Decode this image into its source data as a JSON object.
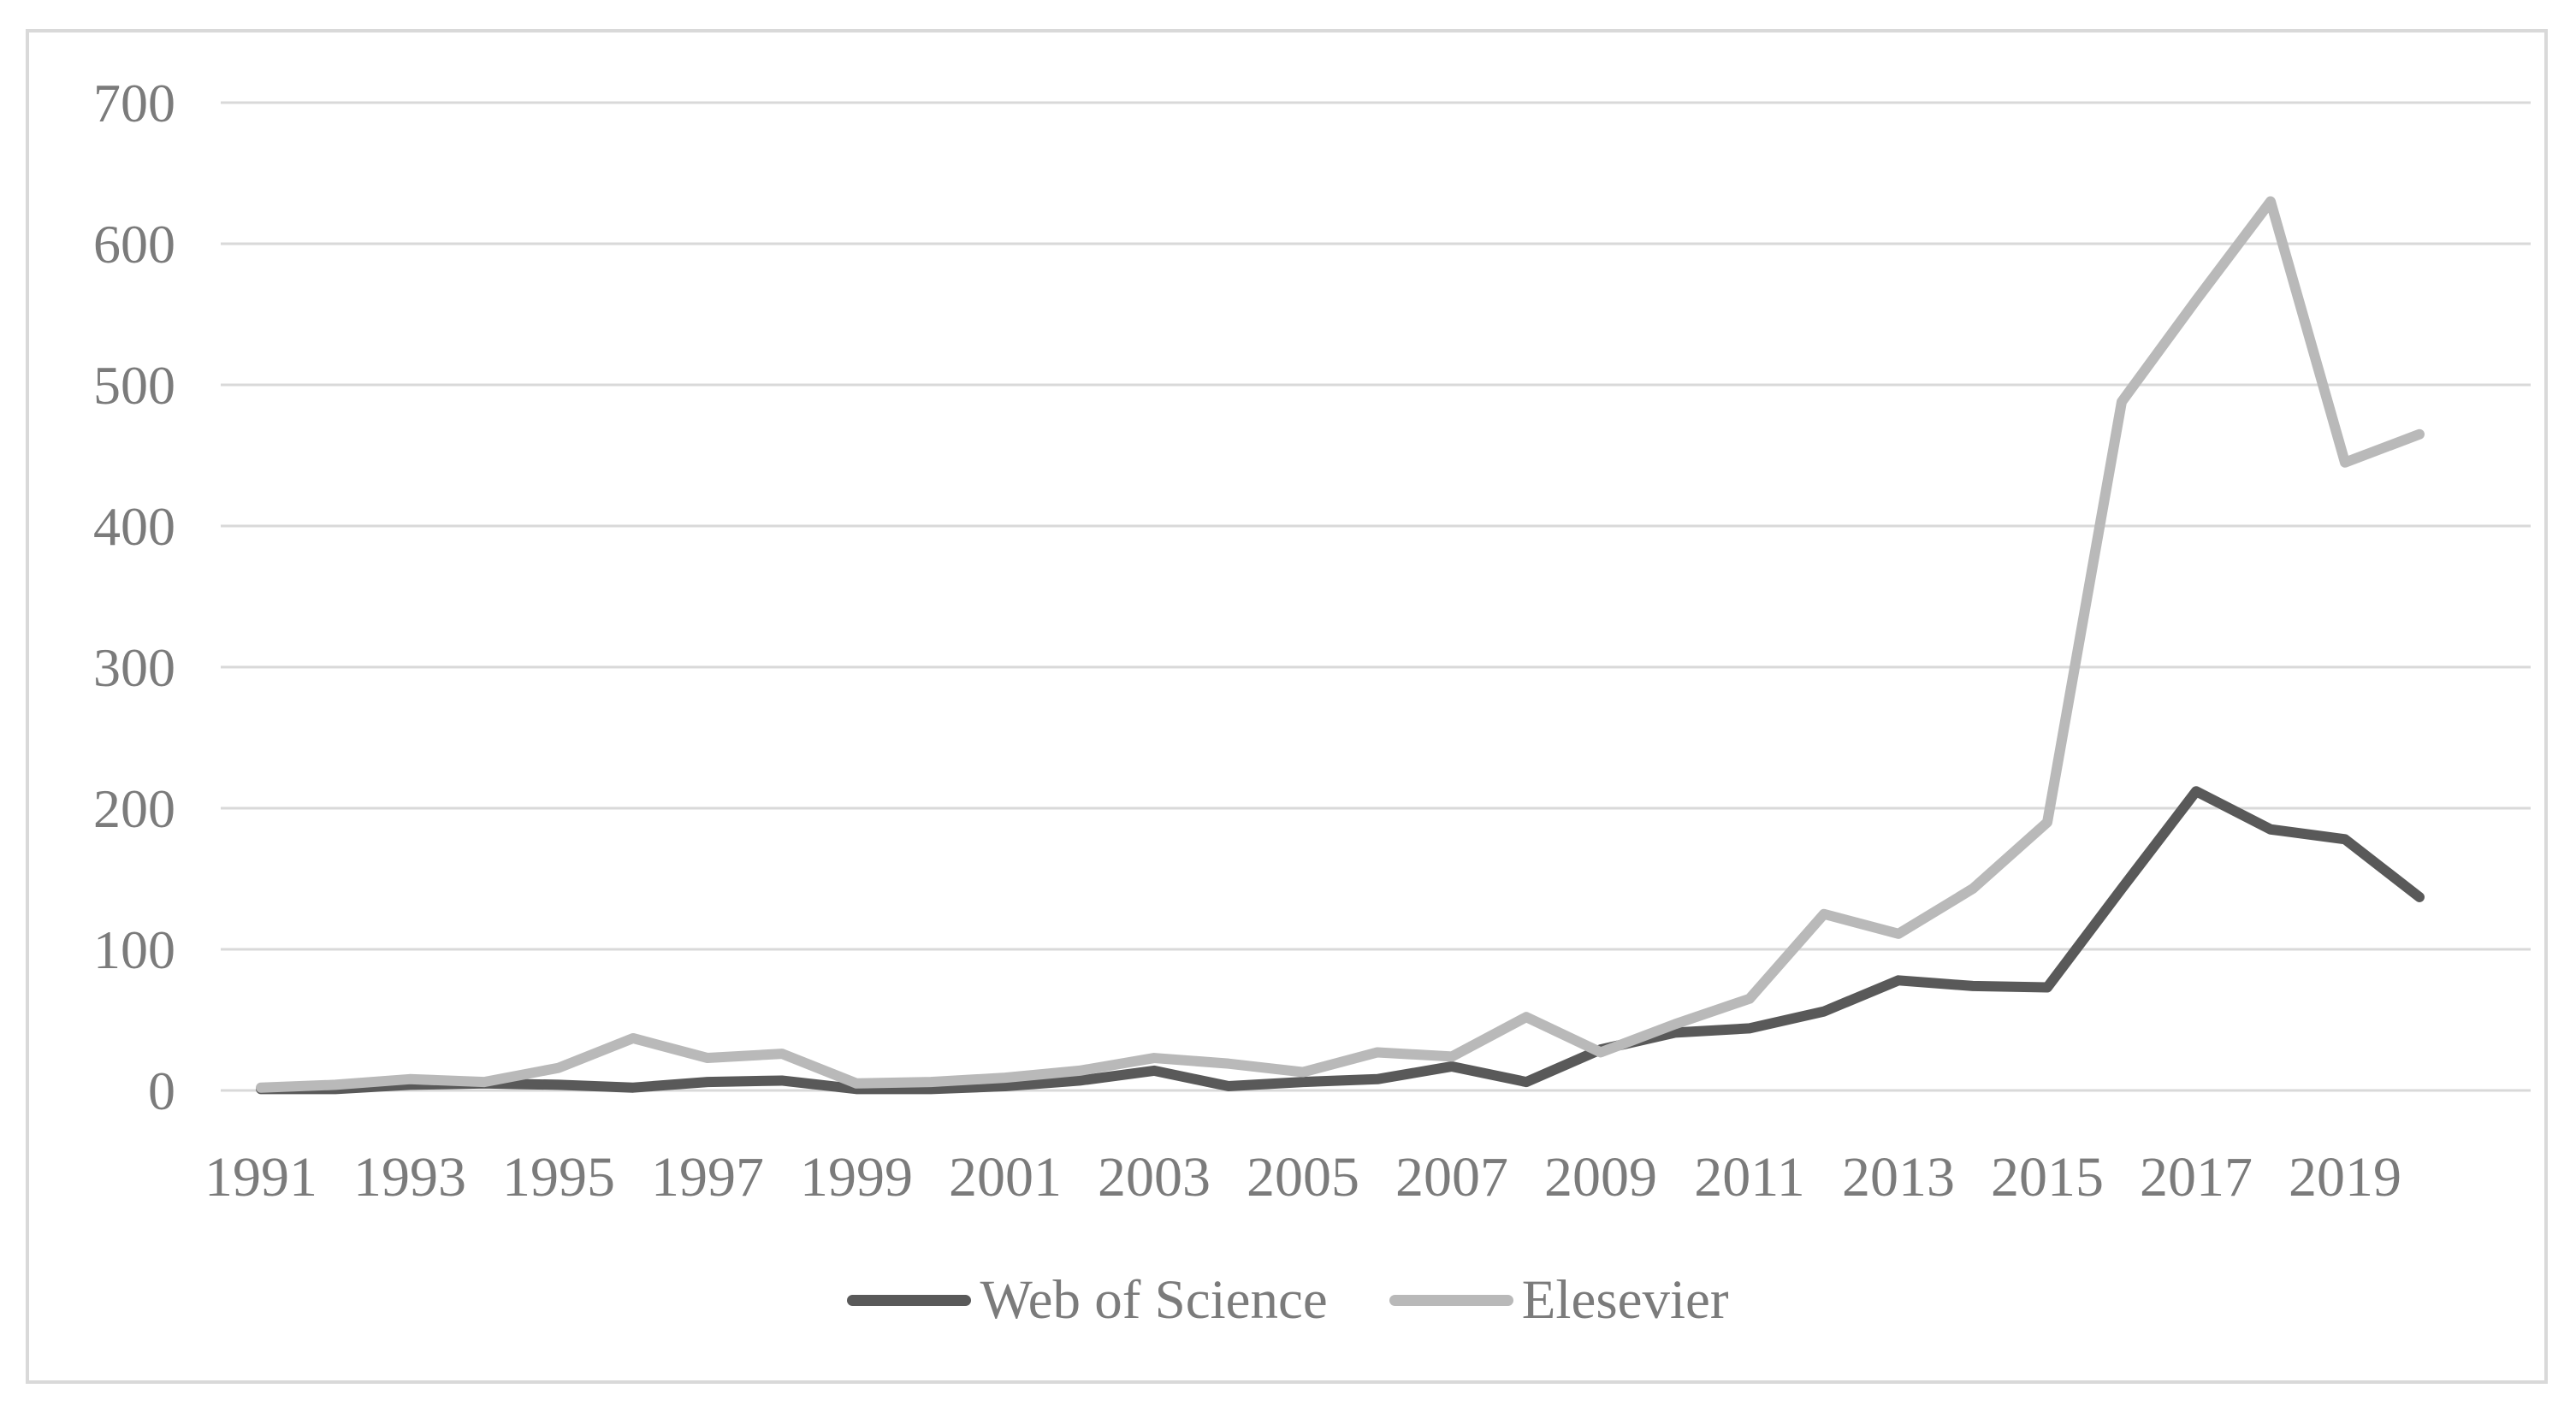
{
  "chart_data": {
    "type": "line",
    "title": "",
    "xlabel": "",
    "ylabel": "",
    "x": [
      1991,
      1992,
      1993,
      1994,
      1995,
      1996,
      1997,
      1998,
      1999,
      2000,
      2001,
      2002,
      2003,
      2004,
      2005,
      2006,
      2007,
      2008,
      2009,
      2010,
      2011,
      2012,
      2013,
      2014,
      2015,
      2016,
      2017,
      2018,
      2019,
      2020
    ],
    "series": [
      {
        "name": "Web of Science",
        "color": "#595959",
        "values": [
          1,
          1,
          4,
          5,
          4,
          2,
          6,
          7,
          1,
          1,
          3,
          7,
          14,
          3,
          6,
          8,
          17,
          6,
          29,
          41,
          44,
          56,
          78,
          74,
          73,
          143,
          212,
          185,
          178,
          137
        ]
      },
      {
        "name": "Elesevier",
        "color": "#b9b9b9",
        "values": [
          2,
          4,
          8,
          6,
          16,
          37,
          23,
          26,
          5,
          6,
          9,
          14,
          23,
          19,
          13,
          27,
          24,
          52,
          27,
          47,
          65,
          125,
          111,
          143,
          190,
          488,
          560,
          630,
          445,
          465
        ]
      }
    ],
    "ylim": [
      0,
      700
    ],
    "y_ticks": [
      0,
      100,
      200,
      300,
      400,
      500,
      600,
      700
    ],
    "x_tick_labels": [
      "1991",
      "1993",
      "1995",
      "1997",
      "1999",
      "2001",
      "2003",
      "2005",
      "2007",
      "2009",
      "2011",
      "2013",
      "2015",
      "2017",
      "2019"
    ],
    "grid": true,
    "legend_position": "bottom"
  },
  "legend": {
    "items": [
      {
        "label": "Web of Science",
        "color": "#595959"
      },
      {
        "label": "Elesevier",
        "color": "#b9b9b9"
      }
    ]
  },
  "colors": {
    "gridline": "#d9d9d9",
    "frame_border": "#d9d9d9",
    "tick_text": "#7b7b7b",
    "background": "#ffffff"
  }
}
